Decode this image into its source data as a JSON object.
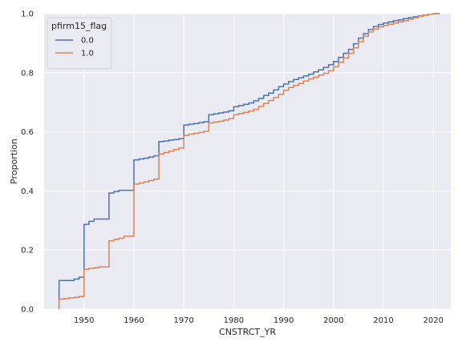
{
  "chart_data": {
    "type": "line",
    "step": true,
    "xlabel": "CNSTRCT_YR",
    "ylabel": "Proportion",
    "xlim": [
      1942,
      2023.5
    ],
    "ylim": [
      0,
      1
    ],
    "xticks": [
      1950,
      1960,
      1970,
      1980,
      1990,
      2000,
      2010,
      2020
    ],
    "yticks": [
      0.0,
      0.2,
      0.4,
      0.6,
      0.8,
      1.0
    ],
    "grid": true,
    "legend": {
      "title": "pfirm15_flag",
      "placement": "top-left"
    },
    "series": [
      {
        "name": "0.0",
        "color": "#4c72b0",
        "x": [
          1945,
          1948,
          1949,
          1950,
          1951,
          1952,
          1955,
          1956,
          1957,
          1960,
          1961,
          1962,
          1963,
          1964,
          1965,
          1966,
          1967,
          1968,
          1969,
          1970,
          1971,
          1972,
          1973,
          1974,
          1975,
          1976,
          1977,
          1978,
          1979,
          1980,
          1981,
          1982,
          1983,
          1984,
          1985,
          1986,
          1987,
          1988,
          1989,
          1990,
          1991,
          1992,
          1993,
          1994,
          1995,
          1996,
          1997,
          1998,
          1999,
          2000,
          2001,
          2002,
          2003,
          2004,
          2005,
          2006,
          2007,
          2008,
          2009,
          2010,
          2011,
          2012,
          2013,
          2014,
          2015,
          2016,
          2017,
          2018,
          2019,
          2020
        ],
        "y": [
          0.097,
          0.102,
          0.108,
          0.287,
          0.297,
          0.305,
          0.393,
          0.398,
          0.402,
          0.505,
          0.508,
          0.511,
          0.515,
          0.519,
          0.567,
          0.569,
          0.572,
          0.574,
          0.577,
          0.623,
          0.626,
          0.628,
          0.631,
          0.634,
          0.658,
          0.661,
          0.664,
          0.667,
          0.671,
          0.685,
          0.689,
          0.693,
          0.698,
          0.705,
          0.713,
          0.723,
          0.731,
          0.742,
          0.753,
          0.762,
          0.77,
          0.777,
          0.783,
          0.789,
          0.795,
          0.803,
          0.81,
          0.818,
          0.827,
          0.838,
          0.852,
          0.866,
          0.879,
          0.898,
          0.917,
          0.932,
          0.946,
          0.956,
          0.963,
          0.968,
          0.972,
          0.976,
          0.979,
          0.983,
          0.986,
          0.989,
          0.992,
          0.995,
          0.998,
          1.0
        ]
      },
      {
        "name": "1.0",
        "color": "#dd8452",
        "x": [
          1945,
          1946,
          1947,
          1948,
          1949,
          1950,
          1951,
          1952,
          1953,
          1955,
          1956,
          1957,
          1958,
          1960,
          1961,
          1962,
          1963,
          1964,
          1965,
          1966,
          1967,
          1968,
          1969,
          1970,
          1971,
          1972,
          1973,
          1974,
          1975,
          1976,
          1977,
          1978,
          1979,
          1980,
          1981,
          1982,
          1983,
          1984,
          1985,
          1986,
          1987,
          1988,
          1989,
          1990,
          1991,
          1992,
          1993,
          1994,
          1995,
          1996,
          1997,
          1998,
          1999,
          2000,
          2001,
          2002,
          2003,
          2004,
          2005,
          2006,
          2007,
          2008,
          2009,
          2010,
          2011,
          2012,
          2013,
          2014,
          2015,
          2016,
          2017,
          2018,
          2019,
          2020
        ],
        "y": [
          0.034,
          0.036,
          0.038,
          0.04,
          0.043,
          0.135,
          0.138,
          0.14,
          0.143,
          0.231,
          0.236,
          0.24,
          0.247,
          0.423,
          0.427,
          0.431,
          0.435,
          0.44,
          0.525,
          0.53,
          0.535,
          0.54,
          0.545,
          0.588,
          0.592,
          0.595,
          0.598,
          0.602,
          0.63,
          0.633,
          0.636,
          0.64,
          0.645,
          0.658,
          0.662,
          0.666,
          0.67,
          0.676,
          0.686,
          0.696,
          0.706,
          0.716,
          0.727,
          0.741,
          0.75,
          0.757,
          0.764,
          0.772,
          0.779,
          0.785,
          0.792,
          0.798,
          0.807,
          0.82,
          0.835,
          0.85,
          0.866,
          0.884,
          0.905,
          0.923,
          0.938,
          0.948,
          0.955,
          0.96,
          0.964,
          0.968,
          0.972,
          0.976,
          0.981,
          0.986,
          0.991,
          0.995,
          0.998,
          1.0
        ]
      }
    ]
  }
}
